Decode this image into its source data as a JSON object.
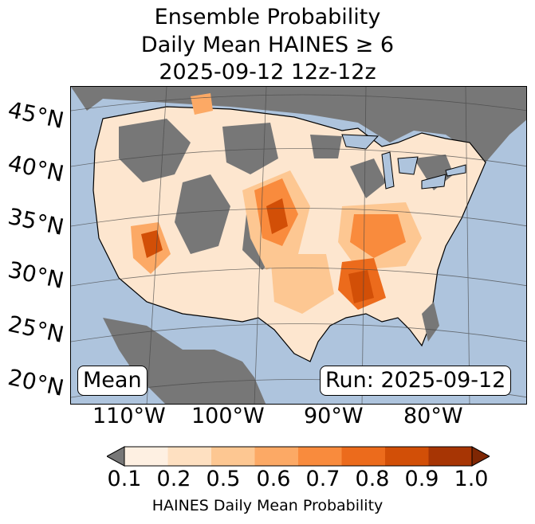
{
  "title": {
    "line1": "Ensemble Probability",
    "line2": "Daily Mean HAINES ≥ 6",
    "line3": "2025-09-12 12z-12z"
  },
  "map": {
    "ocean_color": "#aec4dd",
    "land_gray": "#777777",
    "lat_labels": [
      "45°N",
      "40°N",
      "35°N",
      "30°N",
      "25°N",
      "20°N"
    ],
    "lon_labels": [
      "110°W",
      "100°W",
      "90°W",
      "80°W"
    ],
    "mean_label": "Mean",
    "run_label": "Run: 2025-09-12"
  },
  "colorbar": {
    "ticks": [
      "0.1",
      "0.2",
      "0.5",
      "0.6",
      "0.7",
      "0.8",
      "0.9",
      "1.0"
    ],
    "colors": [
      "#fef0e2",
      "#fee0c1",
      "#fdc792",
      "#fca965",
      "#f98b3d",
      "#ec6b1c",
      "#d24f07",
      "#a73504"
    ],
    "under_color": "#777777",
    "over_color": "#7f2704",
    "label": "HAINES Daily Mean Probability"
  }
}
